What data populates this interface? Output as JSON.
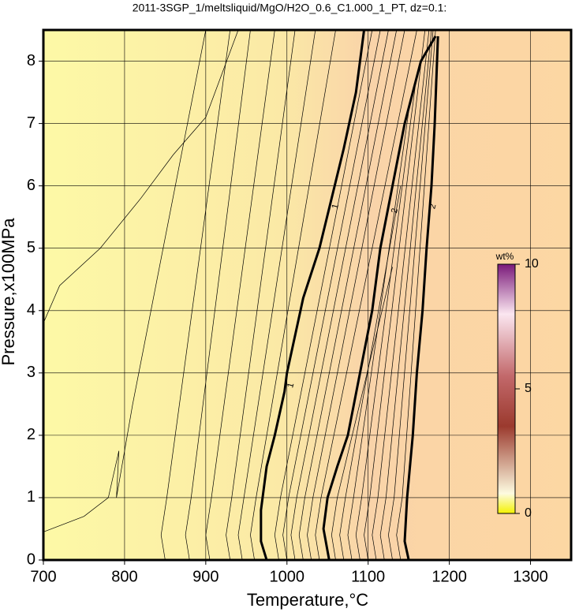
{
  "chart_data": {
    "type": "contour",
    "title": "2011-3SGP_1/meltsliquid/MgO/H2O_0.6_C1.000_1_PT, dz=0.1:",
    "x_label": "Temperature,°C",
    "y_label": "Pressure,x100MPa",
    "xlim": [
      700,
      1350
    ],
    "ylim": [
      0,
      8.5
    ],
    "xticks": [
      700,
      800,
      900,
      1000,
      1100,
      1200,
      1300
    ],
    "yticks": [
      0,
      1,
      2,
      3,
      4,
      5,
      6,
      7,
      8
    ],
    "grid": true,
    "colorbar": {
      "label": "wt%",
      "lim": [
        0,
        10
      ],
      "ticks": [
        0,
        5,
        10
      ]
    },
    "contours": [
      {
        "level": 1,
        "x": [
          975,
          968,
          968,
          975,
          985,
          997,
          1000,
          1020,
          1040,
          1055,
          1070,
          1085,
          1095
        ],
        "y": [
          0,
          0.3,
          0.8,
          1.5,
          2.0,
          2.7,
          3.0,
          4.2,
          5.0,
          5.8,
          6.6,
          7.5,
          8.5
        ]
      },
      {
        "level": 2,
        "x": [
          1052,
          1045,
          1050,
          1062,
          1075,
          1090,
          1105,
          1115,
          1130,
          1145,
          1165,
          1183
        ],
        "y": [
          0,
          0.5,
          1.0,
          1.5,
          2.0,
          3.0,
          4.0,
          5.0,
          6.0,
          7.0,
          8.0,
          8.4
        ]
      },
      {
        "level": 2,
        "x": [
          1150,
          1145,
          1148,
          1155,
          1160,
          1167,
          1172,
          1178,
          1182,
          1186
        ],
        "y": [
          0,
          0.3,
          1,
          2,
          3,
          4,
          5,
          6,
          7,
          8.4
        ]
      }
    ],
    "thin_contours": [
      {
        "x": [
          700,
          750,
          780,
          793,
          790,
          810,
          840,
          870,
          900
        ],
        "y": [
          0.45,
          0.7,
          1.0,
          1.75,
          1.0,
          2.5,
          4.5,
          6.5,
          8.5
        ]
      },
      {
        "x": [
          700,
          720,
          770,
          820,
          860,
          900,
          940
        ],
        "y": [
          3.8,
          4.4,
          5.0,
          5.8,
          6.5,
          7.1,
          8.5
        ]
      },
      {
        "x": [
          850,
          845,
          852,
          930
        ],
        "y": [
          0,
          0.4,
          1.0,
          8.5
        ]
      },
      {
        "x": [
          880,
          875,
          882,
          955
        ],
        "y": [
          0,
          0.4,
          1.0,
          8.5
        ]
      },
      {
        "x": [
          905,
          900,
          907,
          985
        ],
        "y": [
          0,
          0.4,
          1.0,
          8.5
        ]
      },
      {
        "x": [
          930,
          925,
          932,
          1010
        ],
        "y": [
          0,
          0.4,
          1.0,
          8.5
        ]
      },
      {
        "x": [
          945,
          940,
          947,
          1035
        ],
        "y": [
          0,
          0.4,
          1.0,
          8.5
        ]
      },
      {
        "x": [
          960,
          955,
          962,
          1060
        ],
        "y": [
          0,
          0.4,
          1.0,
          8.5
        ]
      },
      {
        "x": [
          990,
          985,
          992,
          1105
        ],
        "y": [
          0,
          0.4,
          1.0,
          8.5
        ]
      },
      {
        "x": [
          1000,
          995,
          1002,
          1115
        ],
        "y": [
          0,
          0.4,
          1.0,
          8.5
        ]
      },
      {
        "x": [
          1010,
          1005,
          1012,
          1125
        ],
        "y": [
          0,
          0.4,
          1.0,
          8.5
        ]
      },
      {
        "x": [
          1020,
          1015,
          1022,
          1135
        ],
        "y": [
          0,
          0.4,
          1.0,
          8.5
        ]
      },
      {
        "x": [
          1030,
          1025,
          1032,
          1145
        ],
        "y": [
          0,
          0.4,
          1.0,
          8.5
        ]
      },
      {
        "x": [
          1040,
          1035,
          1042,
          1160
        ],
        "y": [
          0,
          0.4,
          1.0,
          8.5
        ]
      },
      {
        "x": [
          1060,
          1055,
          1062,
          1130
        ],
        "y": [
          0,
          0.4,
          1.0,
          4.7
        ]
      },
      {
        "x": [
          1070,
          1065,
          1072,
          1140
        ],
        "y": [
          0,
          0.4,
          1.0,
          6.0
        ]
      },
      {
        "x": [
          1080,
          1075,
          1082,
          1150
        ],
        "y": [
          0,
          0.4,
          1.0,
          7.2
        ]
      },
      {
        "x": [
          1090,
          1085,
          1092,
          1160
        ],
        "y": [
          0,
          0.4,
          1.0,
          7.8
        ]
      },
      {
        "x": [
          1100,
          1095,
          1102,
          1170
        ],
        "y": [
          0,
          0.4,
          1.0,
          8.5
        ]
      },
      {
        "x": [
          1110,
          1105,
          1112,
          1175
        ],
        "y": [
          0,
          0.4,
          1.0,
          8.5
        ]
      },
      {
        "x": [
          1120,
          1115,
          1122,
          1178
        ],
        "y": [
          0,
          0.4,
          1.0,
          8.5
        ]
      },
      {
        "x": [
          1130,
          1125,
          1132,
          1180
        ],
        "y": [
          0,
          0.4,
          1.0,
          8.5
        ]
      },
      {
        "x": [
          1140,
          1135,
          1142,
          1183
        ],
        "y": [
          0,
          0.4,
          1.0,
          8.5
        ]
      }
    ],
    "annotations": [
      {
        "text": "1",
        "x": 1060,
        "y": 5.67
      },
      {
        "text": "1",
        "x": 1005,
        "y": 2.8
      },
      {
        "text": "2",
        "x": 1133,
        "y": 5.6
      },
      {
        "text": "2",
        "x": 1180,
        "y": 5.67
      }
    ]
  }
}
